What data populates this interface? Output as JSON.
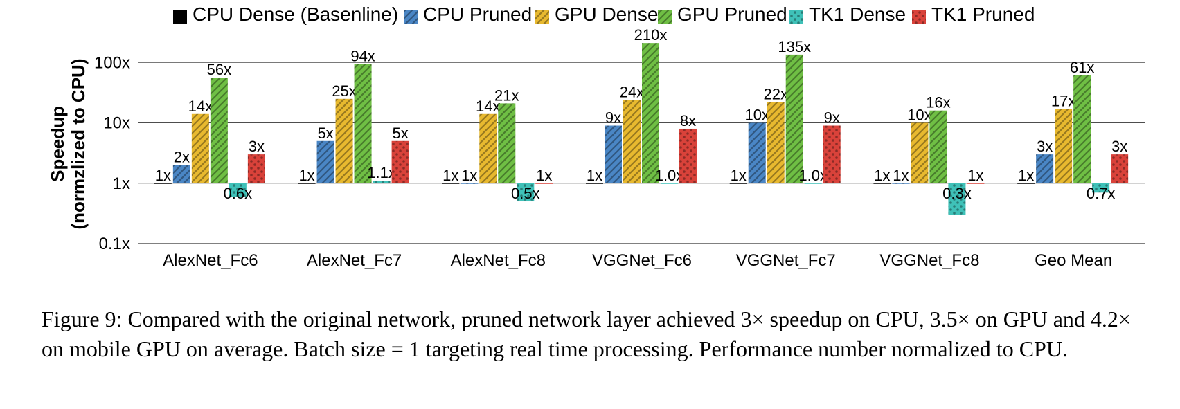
{
  "chart": {
    "type": "bar-grouped-log",
    "ylabel_line1": "Speedup",
    "ylabel_line2": "(normzlized to CPU)",
    "yticks": [
      0.1,
      1,
      10,
      100
    ],
    "ytick_labels": [
      "0.1x",
      "1x",
      "10x",
      "100x"
    ],
    "ylim": [
      0.1,
      200
    ],
    "categories": [
      "AlexNet_Fc6",
      "AlexNet_Fc7",
      "AlexNet_Fc8",
      "VGGNet_Fc6",
      "VGGNet_Fc7",
      "VGGNet_Fc8",
      "Geo Mean"
    ],
    "series": [
      {
        "name": "CPU Dense (Basenline)",
        "color": "#000000",
        "pattern": "solid"
      },
      {
        "name": "CPU Pruned",
        "color": "#4a86c5",
        "pattern": "diag"
      },
      {
        "name": "GPU Dense",
        "color": "#e8b92f",
        "pattern": "diag"
      },
      {
        "name": "GPU Pruned",
        "color": "#6fbf44",
        "pattern": "diag"
      },
      {
        "name": "TK1 Dense",
        "color": "#3fc1b8",
        "pattern": "dots"
      },
      {
        "name": "TK1 Pruned",
        "color": "#d9423a",
        "pattern": "dots"
      }
    ],
    "values": [
      [
        1,
        2,
        14,
        56,
        0.6,
        3
      ],
      [
        1,
        5,
        25,
        94,
        1.1,
        5
      ],
      [
        1,
        1,
        14,
        21,
        0.5,
        1
      ],
      [
        1,
        9,
        24,
        210,
        1.0,
        8
      ],
      [
        1,
        10,
        22,
        135,
        1.0,
        9
      ],
      [
        1,
        1,
        10,
        16,
        0.3,
        1
      ],
      [
        1,
        3,
        17,
        61,
        0.7,
        3
      ]
    ],
    "value_labels": [
      [
        "1x",
        "2x",
        "14x",
        "56x",
        "0.6x",
        "3x"
      ],
      [
        "1x",
        "5x",
        "25x",
        "94x",
        "1.1x",
        "5x"
      ],
      [
        "1x",
        "1x",
        "14x",
        "21x",
        "0.5x",
        "1x"
      ],
      [
        "1x",
        "9x",
        "24x",
        "210x",
        "1.0x",
        "8x"
      ],
      [
        "1x",
        "10x",
        "22x",
        "135x",
        "1.0x",
        "9x"
      ],
      [
        "1x",
        "1x",
        "10x",
        "16x",
        "0.3x",
        "1x"
      ],
      [
        "1x",
        "3x",
        "17x",
        "61x",
        "0.7x",
        "3x"
      ]
    ],
    "plot_bg": "#ffffff",
    "grid_color": "#4d4d4d",
    "axis_color": "#000000",
    "label_fontsize": 22,
    "axis_fontsize": 24,
    "ylabel_fontsize": 26
  },
  "caption": {
    "prefix": "Figure 9: ",
    "text": "Compared with the original network, pruned network layer achieved 3× speedup on CPU, 3.5× on GPU and 4.2× on mobile GPU on average. Batch size = 1 targeting real time processing. Performance number normalized to CPU."
  }
}
